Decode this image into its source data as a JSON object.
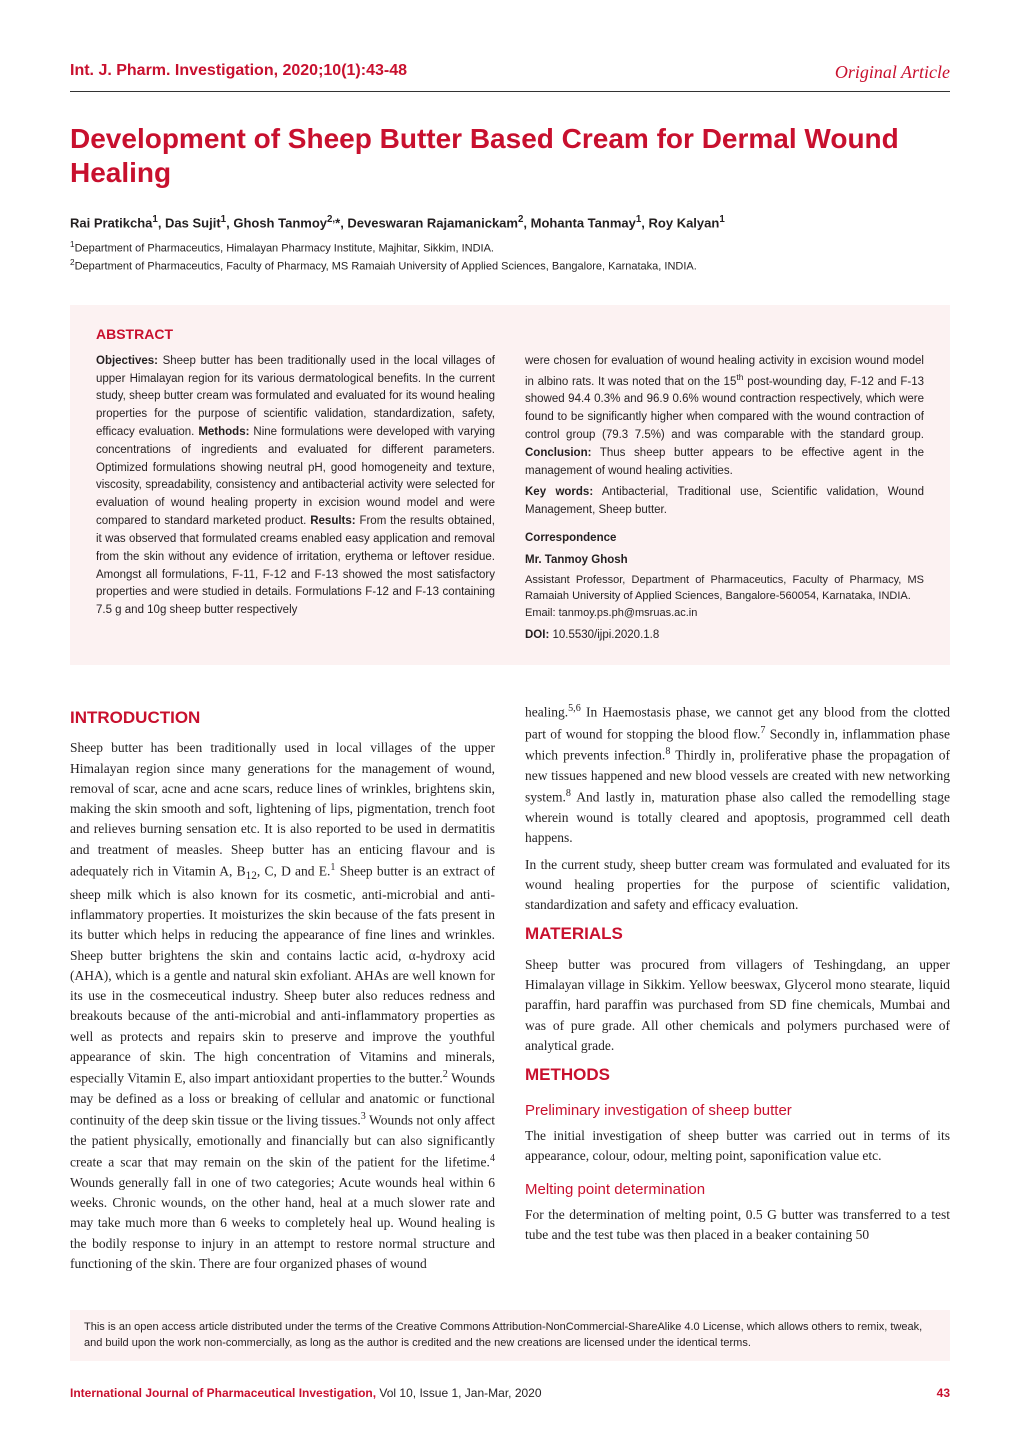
{
  "header": {
    "journal_citation": "Int. J. Pharm. Investigation, 2020;10(1):43-48",
    "article_type": "Original Article"
  },
  "title": "Development of Sheep Butter Based Cream for Dermal Wound Healing",
  "authors_html": "Rai Pratikcha<sup>1</sup>, Das Sujit<sup>1</sup>, Ghosh Tanmoy<sup>2,</sup>*, Deveswaran Rajamanickam<sup>2</sup>, Mohanta Tanmay<sup>1</sup>, Roy Kalyan<sup>1</sup>",
  "affiliations_html": "<sup>1</sup>Department of Pharmaceutics, Himalayan Pharmacy Institute, Majhitar, Sikkim, INDIA.<br><sup>2</sup>Department of Pharmaceutics, Faculty of Pharmacy, MS Ramaiah University of Applied Sciences, Bangalore, Karnataka, INDIA.",
  "abstract": {
    "heading": "ABSTRACT",
    "left_html": "<b>Objectives:</b> Sheep butter has been traditionally used in the local villages of upper Himalayan region for its various dermatological benefits. In the current study, sheep butter cream was formulated and evaluated for its wound healing properties for the purpose of scientific validation, standardization, safety, efficacy evaluation. <b>Methods:</b> Nine formulations were developed with varying concentrations of ingredients and evaluated for different parameters. Optimized formulations showing neutral pH, good homogeneity and texture, viscosity, spreadability, consistency and antibacterial activity were selected for evaluation of wound healing property in excision wound model and were compared to standard marketed product. <b>Results:</b> From the results obtained, it was observed that formulated creams enabled easy application and removal from the skin without any evidence of irritation, erythema or leftover residue. Amongst all formulations, F-11, F-12 and F-13 showed the most satisfactory properties and were studied in details. Formulations F-12 and F-13 containing 7.5 g and 10g sheep butter respectively",
    "right_top_html": "were chosen for evaluation of wound healing activity in excision wound model in albino rats. It was noted that on the 15<sup>th</sup> post-wounding day, F-12 and F-13 showed 94.4 0.3% and 96.9 0.6% wound contraction respectively, which were found to be significantly higher when compared with the wound contraction of control group (79.3  7.5%) and was comparable with the standard group. <b>Conclusion:</b> Thus sheep butter appears to be effective agent in the management of wound healing activities.",
    "keywords_label": "Key words:",
    "keywords": " Antibacterial, Traditional use, Scientific validation, Wound Management, Sheep butter.",
    "correspondence_heading": "Correspondence",
    "correspondence_name": "Mr. Tanmoy Ghosh",
    "correspondence_text": "Assistant Professor, Department of Pharmaceutics, Faculty of Pharmacy, MS Ramaiah University of Applied Sciences, Bangalore-560054, Karnataka, INDIA.\nEmail: tanmoy.ps.ph@msruas.ac.in",
    "doi_label": "DOI:",
    "doi_value": " 10.5530/ijpi.2020.1.8"
  },
  "body": {
    "intro_heading": "INTRODUCTION",
    "intro_left_html": "Sheep butter has been traditionally used in local villages of the upper Himalayan region since many generations for the management of wound, removal of scar, acne and acne scars, reduce lines of wrinkles, brightens skin, making the skin smooth and soft, lightening of lips, pigmentation, trench foot and relieves burning sensation etc. It is also reported to be used in dermatitis and treatment of measles. Sheep butter has an enticing flavour and is adequately rich in Vitamin A, B<sub>12</sub>, C, D and E.<sup>1</sup> Sheep butter is an extract of sheep milk which is also known for its cosmetic, anti-microbial and anti-inflammatory properties. It moisturizes the skin because of the fats present in its butter which helps in reducing the appearance of fine lines and wrinkles. Sheep butter brightens the skin and contains lactic acid, α-hydroxy acid (AHA), which is a gentle and natural skin exfoliant. AHAs are well known for its use in the cosmeceutical industry. Sheep buter also reduces redness and breakouts because of the anti-microbial and anti-inflammatory properties as well as protects and repairs skin to preserve and improve the youthful appearance of skin. The high concentration of Vitamins and minerals, especially Vitamin E, also impart antioxidant properties to the butter.<sup>2</sup> Wounds may be defined as a loss or breaking of cellular and anatomic or functional continuity of the deep skin tissue or the living tissues.<sup>3</sup> Wounds not only affect the patient physically, emotionally and financially but can also significantly create a scar that may remain on the skin of the patient for the lifetime.<sup>4</sup> Wounds generally fall in one of two categories; Acute wounds heal within 6 weeks. Chronic wounds, on the other hand, heal at a much slower rate and may take much more than 6 weeks to completely heal up. Wound healing is the bodily response to injury in an attempt to restore normal structure and functioning of the skin. There are four organized phases of wound",
    "intro_right_html": "healing.<sup>5,6</sup> In Haemostasis phase, we cannot get any blood from the clotted part of wound for stopping the blood flow.<sup>7</sup> Secondly in, inflammation phase which prevents infection.<sup>8</sup> Thirdly in, proliferative phase the propagation of new tissues happened and new blood vessels are created with new networking system.<sup>8</sup> And lastly in, maturation phase also called the remodelling stage wherein wound is totally cleared and apoptosis, programmed cell death happens.",
    "intro_right2_html": "In the current study, sheep butter cream was formulated and evaluated for its wound healing properties for the purpose of scientific validation, standardization and safety and efficacy evaluation.",
    "materials_heading": "MATERIALS",
    "materials_html": "Sheep butter was procured from villagers of Teshingdang, an upper Himalayan village in Sikkim. Yellow beeswax, Glycerol mono stearate, liquid paraffin, hard paraffin was purchased from SD fine chemicals, Mumbai and was of pure grade. All other chemicals and polymers purchased were of analytical grade.",
    "methods_heading": "METHODS",
    "sub1_heading": "Preliminary investigation of sheep butter",
    "sub1_html": "The initial investigation of sheep butter was carried out in terms of its appearance, colour, odour, melting point, saponification value etc.",
    "sub2_heading": "Melting point determination",
    "sub2_html": "For the determination of melting point, 0.5 G butter was transferred to a test tube and the test tube was then placed in a beaker containing 50"
  },
  "license": "This is an open access article distributed under the terms of the Creative Commons Attribution-NonCommercial-ShareAlike 4.0 License, which allows others to remix, tweak, and build upon the work non-commercially, as long as the author is credited and the new creations are licensed under the identical terms.",
  "footer": {
    "journal": "International Journal of Pharmaceutical Investigation,",
    "issue": " Vol 10, Issue 1, Jan-Mar, 2020",
    "page": "43"
  },
  "colors": {
    "accent": "#C8102E",
    "abstract_bg": "#fcf2f2",
    "text": "#231f20"
  }
}
